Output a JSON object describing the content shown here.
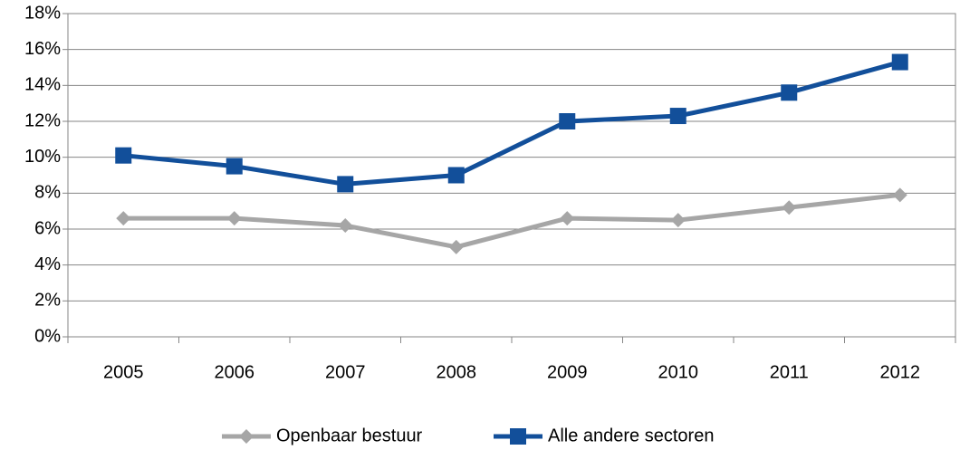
{
  "chart_data": {
    "type": "line",
    "categories": [
      "2005",
      "2006",
      "2007",
      "2008",
      "2009",
      "2010",
      "2011",
      "2012"
    ],
    "series": [
      {
        "name": "Openbaar bestuur",
        "color": "#a6a6a6",
        "marker": "diamond",
        "values": [
          6.6,
          6.6,
          6.2,
          5.0,
          6.6,
          6.5,
          7.2,
          7.9
        ]
      },
      {
        "name": "Alle andere sectoren",
        "color": "#124f9a",
        "marker": "square",
        "values": [
          10.1,
          9.5,
          8.5,
          9.0,
          12.0,
          12.3,
          13.6,
          15.3
        ]
      }
    ],
    "ylim": [
      0,
      18
    ],
    "yticks": [
      {
        "value": 0,
        "label": "0%"
      },
      {
        "value": 2,
        "label": "2%"
      },
      {
        "value": 4,
        "label": "4%"
      },
      {
        "value": 6,
        "label": "6%"
      },
      {
        "value": 8,
        "label": "8%"
      },
      {
        "value": 10,
        "label": "10%"
      },
      {
        "value": 12,
        "label": "12%"
      },
      {
        "value": 14,
        "label": "14%"
      },
      {
        "value": 16,
        "label": "16%"
      },
      {
        "value": 18,
        "label": "18%"
      }
    ],
    "grid": true,
    "legend": "bottom"
  }
}
